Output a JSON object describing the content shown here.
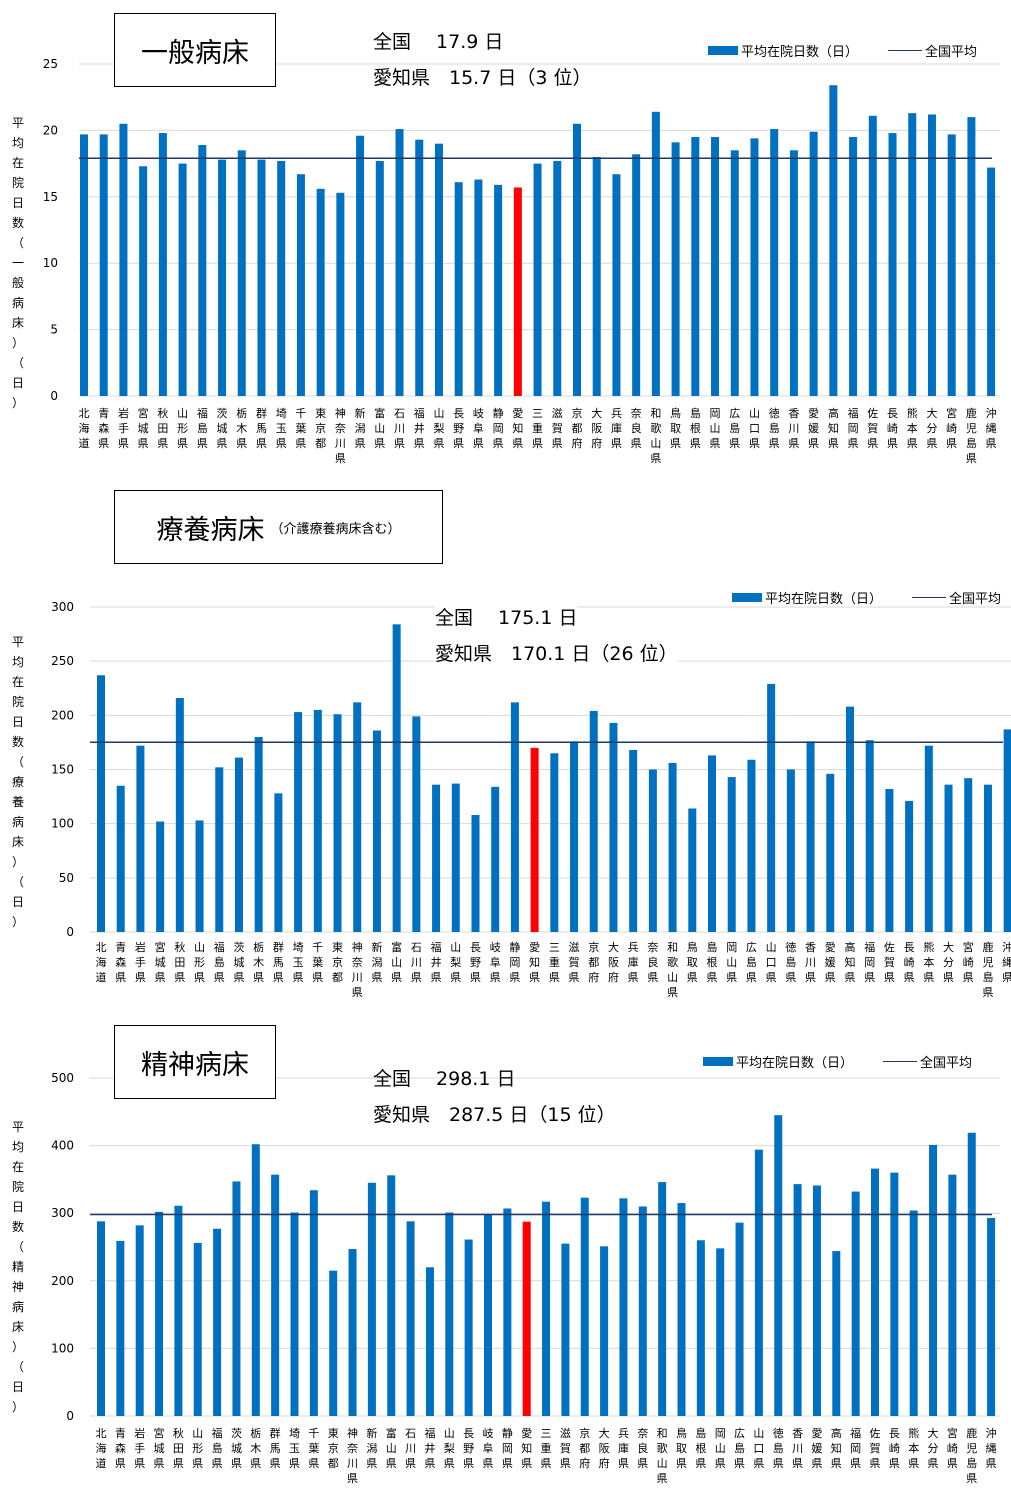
{
  "chart_data": [
    {
      "type": "bar",
      "title": "一般病床",
      "subtitle": "",
      "info_national": "全国　 17.9 日",
      "info_aichi": "愛知県　15.7 日（3 位）",
      "ylabel": "平\n均\n在\n院\n日\n数\n（\n一\n般\n病\n床\n）\n（\n日\n）",
      "legend_bar": "平均在院日数（日）",
      "legend_line": "全国平均",
      "ylim": [
        0,
        25
      ],
      "yticks": [
        "0",
        "5",
        "10",
        "15",
        "20",
        "25"
      ],
      "national_average": 17.9,
      "highlight_index": 22,
      "highlight_color": "#ff0000",
      "bar_color": "#0070c0",
      "line_color": "#1f3864",
      "values": [
        19.7,
        19.7,
        20.5,
        17.3,
        19.8,
        17.5,
        18.9,
        17.8,
        18.5,
        17.8,
        17.7,
        16.7,
        15.6,
        15.3,
        19.6,
        17.7,
        20.1,
        19.3,
        19.0,
        16.1,
        16.3,
        15.9,
        15.7,
        17.5,
        17.7,
        20.5,
        18.0,
        16.7,
        18.2,
        21.4,
        19.1,
        19.5,
        19.5,
        18.5,
        19.4,
        20.1,
        18.5,
        19.9,
        23.4,
        19.5,
        21.1,
        19.8,
        21.3,
        21.2,
        19.7,
        21.0,
        17.2
      ]
    },
    {
      "type": "bar",
      "title": "療養病床",
      "subtitle": "（介護療養病床含む）",
      "info_national": "全国　 175.1 日",
      "info_aichi": "愛知県　170.1 日（26 位）",
      "ylabel": "平\n均\n在\n院\n日\n数\n（\n療\n養\n病\n床\n）\n（\n日\n）",
      "legend_bar": "平均在院日数（日）",
      "legend_line": "全国平均",
      "ylim": [
        0,
        300
      ],
      "yticks": [
        "0",
        "50",
        "100",
        "150",
        "200",
        "250",
        "300"
      ],
      "national_average": 175.1,
      "highlight_index": 22,
      "highlight_color": "#ff0000",
      "bar_color": "#0070c0",
      "line_color": "#1f3864",
      "values": [
        237,
        135,
        172,
        102,
        216,
        103,
        152,
        161,
        180,
        128,
        203,
        205,
        201,
        212,
        186,
        284,
        199,
        136,
        137,
        108,
        134,
        212,
        170,
        165,
        176,
        204,
        193,
        168,
        150,
        156,
        114,
        163,
        143,
        159,
        229,
        150,
        176,
        146,
        208,
        177,
        132,
        121,
        172,
        136,
        142,
        136,
        187
      ]
    },
    {
      "type": "bar",
      "title": "精神病床",
      "subtitle": "",
      "info_national": "全国　 298.1 日",
      "info_aichi": "愛知県　287.5 日（15 位）",
      "ylabel": "平\n均\n在\n院\n日\n数\n（\n精\n神\n病\n床\n）\n（\n日\n）",
      "legend_bar": "平均在院日数（日）",
      "legend_line": "全国平均",
      "ylim": [
        0,
        500
      ],
      "yticks": [
        "0",
        "100",
        "200",
        "300",
        "400",
        "500"
      ],
      "national_average": 298.1,
      "highlight_index": 22,
      "highlight_color": "#ff0000",
      "bar_color": "#0070c0",
      "line_color": "#1f3864",
      "values": [
        288,
        259,
        282,
        302,
        311,
        256,
        277,
        347,
        402,
        357,
        301,
        334,
        215,
        247,
        345,
        356,
        288,
        220,
        301,
        261,
        298,
        307,
        287.5,
        317,
        255,
        323,
        251,
        322,
        310,
        346,
        315,
        260,
        248,
        286,
        394,
        445,
        343,
        341,
        244,
        332,
        366,
        360,
        304,
        401,
        357,
        419,
        293
      ]
    }
  ],
  "categories": [
    "北海道",
    "青森県",
    "岩手県",
    "宮城県",
    "秋田県",
    "山形県",
    "福島県",
    "茨城県",
    "栃木県",
    "群馬県",
    "埼玉県",
    "千葉県",
    "東京都",
    "神奈川県",
    "新潟県",
    "富山県",
    "石川県",
    "福井県",
    "山梨県",
    "長野県",
    "岐阜県",
    "静岡県",
    "愛知県",
    "三重県",
    "滋賀県",
    "京都府",
    "大阪府",
    "兵庫県",
    "奈良県",
    "和歌山県",
    "鳥取県",
    "島根県",
    "岡山県",
    "広島県",
    "山口県",
    "徳島県",
    "香川県",
    "愛媛県",
    "高知県",
    "福岡県",
    "佐賀県",
    "長崎県",
    "熊本県",
    "大分県",
    "宮崎県",
    "鹿児島県",
    "沖縄県"
  ]
}
